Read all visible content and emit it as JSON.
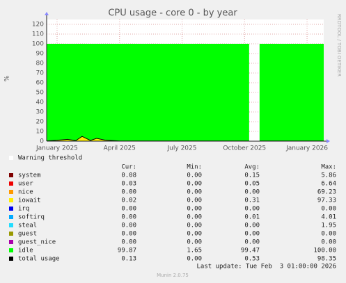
{
  "chart_data": {
    "type": "area",
    "title": "CPU usage - core 0 - by year",
    "y_label": "%",
    "side_text": "RRDTOOL / TOBI OETIKER",
    "xlim": [
      -0.5,
      12.8
    ],
    "xticks": [
      {
        "value": 0,
        "label": "January 2025"
      },
      {
        "value": 3,
        "label": "April 2025"
      },
      {
        "value": 6,
        "label": "July 2025"
      },
      {
        "value": 9,
        "label": "October 2025"
      },
      {
        "value": 12,
        "label": "January 2026"
      }
    ],
    "ylim": [
      0,
      125
    ],
    "yticks": [
      0,
      10,
      20,
      30,
      40,
      50,
      60,
      70,
      80,
      90,
      100,
      110,
      120
    ],
    "grid": true,
    "x": [
      -0.5,
      0,
      0.5,
      0.9,
      1.2,
      1.6,
      1.9,
      2.3,
      3,
      4,
      5,
      6,
      7,
      8,
      9.22,
      9.5,
      9.72,
      10.5,
      11.5,
      12.8
    ],
    "warning_label": "Warning threshold",
    "series": [
      {
        "name": "system",
        "color": "#7f0000",
        "values": [
          0.2,
          0.3,
          0.3,
          0.2,
          0.3,
          0.2,
          0.3,
          0.2,
          0.15,
          0.15,
          0.15,
          0.15,
          0.15,
          0.15,
          0.15,
          null,
          0.15,
          0.15,
          0.15,
          0.15
        ]
      },
      {
        "name": "user",
        "color": "#ee0000",
        "values": [
          0.05,
          0.05,
          0.05,
          0.05,
          0.05,
          0.05,
          0.05,
          0.05,
          0.05,
          0.05,
          0.05,
          0.05,
          0.05,
          0.05,
          0.05,
          null,
          0.05,
          0.05,
          0.05,
          0.05
        ]
      },
      {
        "name": "nice",
        "color": "#ff9900",
        "values": [
          0,
          0,
          0,
          0,
          0,
          0,
          0,
          0,
          0,
          0,
          0,
          0,
          0,
          0,
          0,
          null,
          0,
          0,
          0,
          0
        ]
      },
      {
        "name": "iowait",
        "color": "#ffee00",
        "values": [
          0,
          0.5,
          1.5,
          0.3,
          4.5,
          0.5,
          2.5,
          0.8,
          0,
          0,
          0,
          0,
          0,
          0,
          0,
          null,
          0,
          0,
          0,
          0
        ]
      },
      {
        "name": "irq",
        "color": "#0000ee",
        "values": [
          0,
          0,
          0,
          0,
          0,
          0,
          0,
          0,
          0,
          0,
          0,
          0,
          0,
          0,
          0,
          null,
          0,
          0,
          0,
          0
        ]
      },
      {
        "name": "softirq",
        "color": "#00aaff",
        "values": [
          0,
          0,
          0,
          0,
          0,
          0,
          0,
          0,
          0,
          0,
          0,
          0,
          0,
          0,
          0,
          null,
          0,
          0,
          0,
          0
        ]
      },
      {
        "name": "steal",
        "color": "#22ddff",
        "values": [
          0,
          0,
          0,
          0,
          0,
          0,
          0,
          0,
          0,
          0,
          0,
          0,
          0,
          0,
          0,
          null,
          0,
          0,
          0,
          0
        ]
      },
      {
        "name": "guest",
        "color": "#999900",
        "values": [
          0,
          0,
          0,
          0,
          0,
          0,
          0,
          0,
          0,
          0,
          0,
          0,
          0,
          0,
          0,
          null,
          0,
          0,
          0,
          0
        ]
      },
      {
        "name": "guest_nice",
        "color": "#aa00aa",
        "values": [
          0,
          0,
          0,
          0,
          0,
          0,
          0,
          0,
          0,
          0,
          0,
          0,
          0,
          0,
          0,
          null,
          0,
          0,
          0,
          0
        ]
      },
      {
        "name": "idle",
        "color": "#00ff00",
        "values": [
          99.75,
          99.15,
          98.15,
          99.45,
          95.15,
          99.25,
          97.15,
          98.95,
          99.8,
          99.8,
          99.8,
          99.8,
          99.8,
          99.8,
          99.8,
          null,
          99.8,
          99.8,
          99.8,
          99.8
        ]
      },
      {
        "name": "total usage",
        "color": "#000000",
        "style": "line",
        "values": [
          0.25,
          0.85,
          1.85,
          0.55,
          4.85,
          0.75,
          2.85,
          1.05,
          0.2,
          0.2,
          0.2,
          0.2,
          0.2,
          0.2,
          0.2,
          null,
          0.2,
          0.2,
          0.2,
          0.2
        ]
      }
    ],
    "legend_columns": [
      "Cur:",
      "Min:",
      "Avg:",
      "Max:"
    ],
    "legend_stats": [
      [
        "0.08",
        "0.00",
        "0.15",
        "5.86"
      ],
      [
        "0.03",
        "0.00",
        "0.05",
        "6.64"
      ],
      [
        "0.00",
        "0.00",
        "0.00",
        "69.23"
      ],
      [
        "0.02",
        "0.00",
        "0.31",
        "97.33"
      ],
      [
        "0.00",
        "0.00",
        "0.00",
        "0.00"
      ],
      [
        "0.00",
        "0.00",
        "0.01",
        "4.01"
      ],
      [
        "0.00",
        "0.00",
        "0.00",
        "1.95"
      ],
      [
        "0.00",
        "0.00",
        "0.00",
        "0.00"
      ],
      [
        "0.00",
        "0.00",
        "0.00",
        "0.00"
      ],
      [
        "99.87",
        "1.65",
        "99.47",
        "100.00"
      ],
      [
        "0.13",
        "0.00",
        "0.53",
        "98.35"
      ]
    ],
    "last_update": "Last update: Tue Feb  3 01:00:00 2026",
    "generator": "Munin 2.0.75"
  }
}
